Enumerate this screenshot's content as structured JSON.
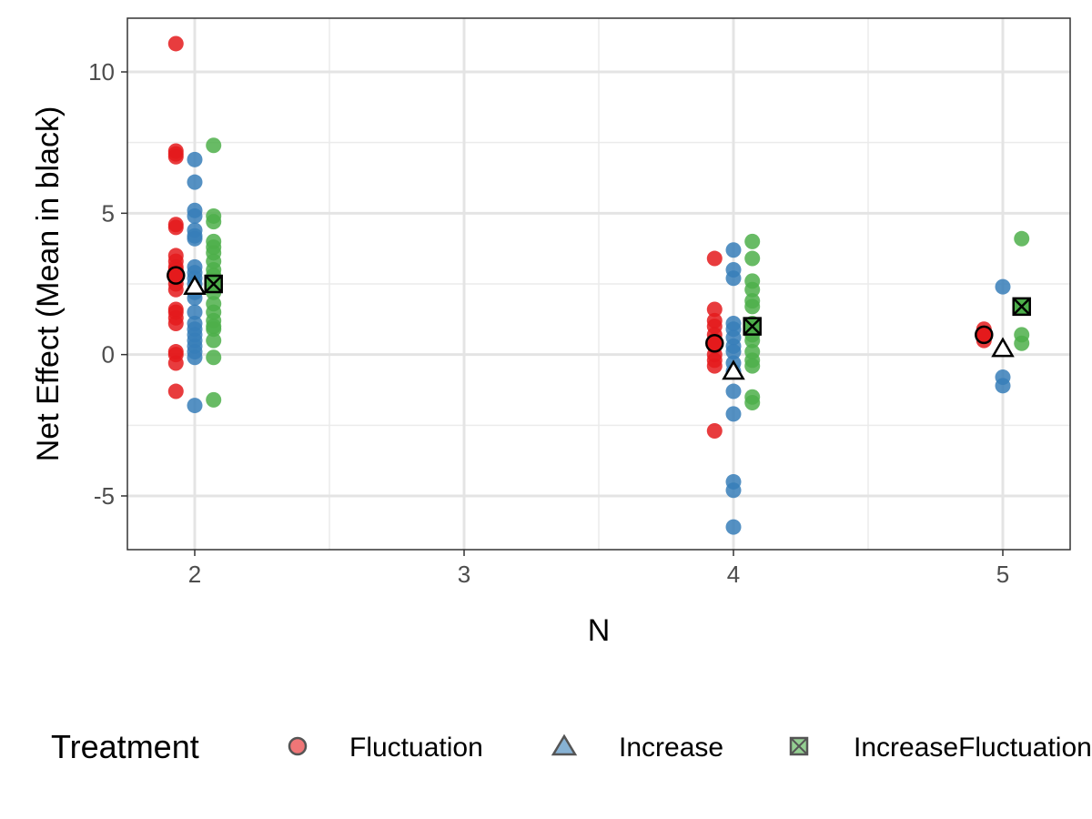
{
  "chart_data": {
    "type": "scatter",
    "xlabel": "N",
    "ylabel": "Net Effect (Mean in black)",
    "xlim": [
      1.75,
      5.25
    ],
    "ylim": [
      -6.9,
      11.9
    ],
    "x_ticks": [
      2,
      3,
      4,
      5
    ],
    "y_ticks": [
      -5,
      0,
      5,
      10
    ],
    "grid": true,
    "legend_position": "bottom",
    "legend_title": "Treatment",
    "series": [
      {
        "name": "Fluctuation",
        "color": "#E41A1C",
        "shape": "circle",
        "points": [
          {
            "x": 2,
            "y": [
              11.0,
              7.2,
              7.1,
              7.0,
              4.6,
              4.5,
              3.5,
              3.3,
              3.1,
              3.0,
              2.9,
              2.7,
              2.5,
              2.3,
              1.6,
              1.5,
              1.3,
              1.1,
              0.1,
              0.0,
              -0.3,
              -1.3
            ]
          },
          {
            "x": 4,
            "y": [
              3.4,
              1.6,
              1.2,
              1.0,
              0.7,
              0.5,
              0.3,
              0.0,
              -0.2,
              -0.4,
              -2.7
            ]
          },
          {
            "x": 5,
            "y": [
              0.9,
              0.7,
              0.5
            ]
          }
        ],
        "means": [
          {
            "x": 2,
            "y": 2.8
          },
          {
            "x": 4,
            "y": 0.4
          },
          {
            "x": 5,
            "y": 0.7
          }
        ]
      },
      {
        "name": "Increase",
        "color": "#377EB8",
        "shape": "triangle",
        "points": [
          {
            "x": 2,
            "y": [
              6.9,
              6.1,
              5.1,
              4.9,
              4.4,
              4.2,
              4.1,
              3.1,
              2.9,
              2.7,
              2.5,
              2.2,
              2.0,
              1.5,
              1.1,
              0.9,
              0.7,
              0.5,
              0.3,
              0.1,
              -0.1,
              -1.8
            ]
          },
          {
            "x": 4,
            "y": [
              3.7,
              3.0,
              2.7,
              1.1,
              0.9,
              0.6,
              0.3,
              0.1,
              -0.3,
              -0.6,
              -1.3,
              -2.1,
              -4.5,
              -4.8,
              -6.1
            ]
          },
          {
            "x": 5,
            "y": [
              2.4,
              -0.8,
              -1.1
            ]
          }
        ],
        "means": [
          {
            "x": 2,
            "y": 2.4
          },
          {
            "x": 4,
            "y": -0.6
          },
          {
            "x": 5,
            "y": 0.2
          }
        ]
      },
      {
        "name": "IncreaseFluctuation",
        "color": "#4DAF4A",
        "shape": "square-x",
        "points": [
          {
            "x": 2,
            "y": [
              7.4,
              4.9,
              4.7,
              4.0,
              3.8,
              3.6,
              3.3,
              3.0,
              2.8,
              2.6,
              2.2,
              1.8,
              1.5,
              1.2,
              1.0,
              0.9,
              0.5,
              -0.1,
              -1.6
            ]
          },
          {
            "x": 4,
            "y": [
              4.0,
              3.4,
              2.6,
              2.3,
              1.9,
              1.7,
              1.1,
              0.7,
              0.5,
              0.1,
              -0.2,
              -0.4,
              -1.5,
              -1.7
            ]
          },
          {
            "x": 5,
            "y": [
              4.1,
              0.7,
              0.4
            ]
          }
        ],
        "means": [
          {
            "x": 2,
            "y": 2.5
          },
          {
            "x": 4,
            "y": 1.0
          },
          {
            "x": 5,
            "y": 1.7
          }
        ]
      }
    ]
  }
}
